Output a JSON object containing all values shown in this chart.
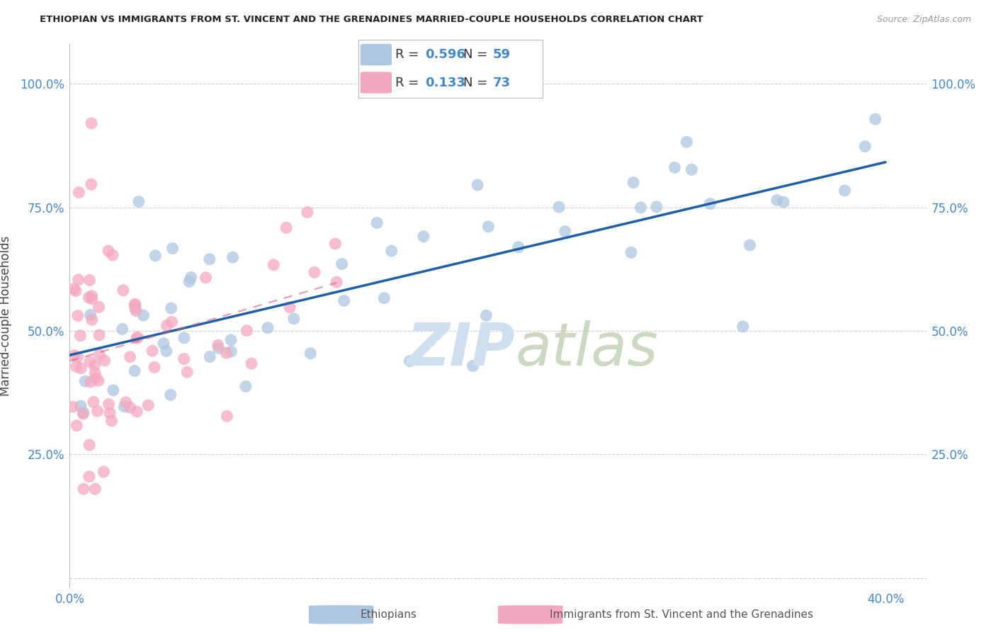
{
  "title": "ETHIOPIAN VS IMMIGRANTS FROM ST. VINCENT AND THE GRENADINES MARRIED-COUPLE HOUSEHOLDS CORRELATION CHART",
  "source": "Source: ZipAtlas.com",
  "ylabel": "Married-couple Households",
  "xlim": [
    0.0,
    0.42
  ],
  "ylim": [
    -0.02,
    1.08
  ],
  "yticks": [
    0.0,
    0.25,
    0.5,
    0.75,
    1.0
  ],
  "ytick_labels": [
    "",
    "25.0%",
    "50.0%",
    "75.0%",
    "100.0%"
  ],
  "xticks": [
    0.0,
    0.05,
    0.1,
    0.15,
    0.2,
    0.25,
    0.3,
    0.35,
    0.4
  ],
  "xtick_labels": [
    "0.0%",
    "",
    "",
    "",
    "",
    "",
    "",
    "",
    "40.0%"
  ],
  "blue_R": 0.596,
  "blue_N": 59,
  "pink_R": 0.133,
  "pink_N": 73,
  "blue_color": "#aec6e0",
  "blue_line_color": "#1e5fa8",
  "pink_color": "#f4a8bf",
  "pink_line_color": "#d06080",
  "watermark_color": "#d0dff0",
  "background_color": "#ffffff",
  "grid_color": "#d0d0d0",
  "tick_color": "#4488cc",
  "title_color": "#222222",
  "ylabel_color": "#444444"
}
